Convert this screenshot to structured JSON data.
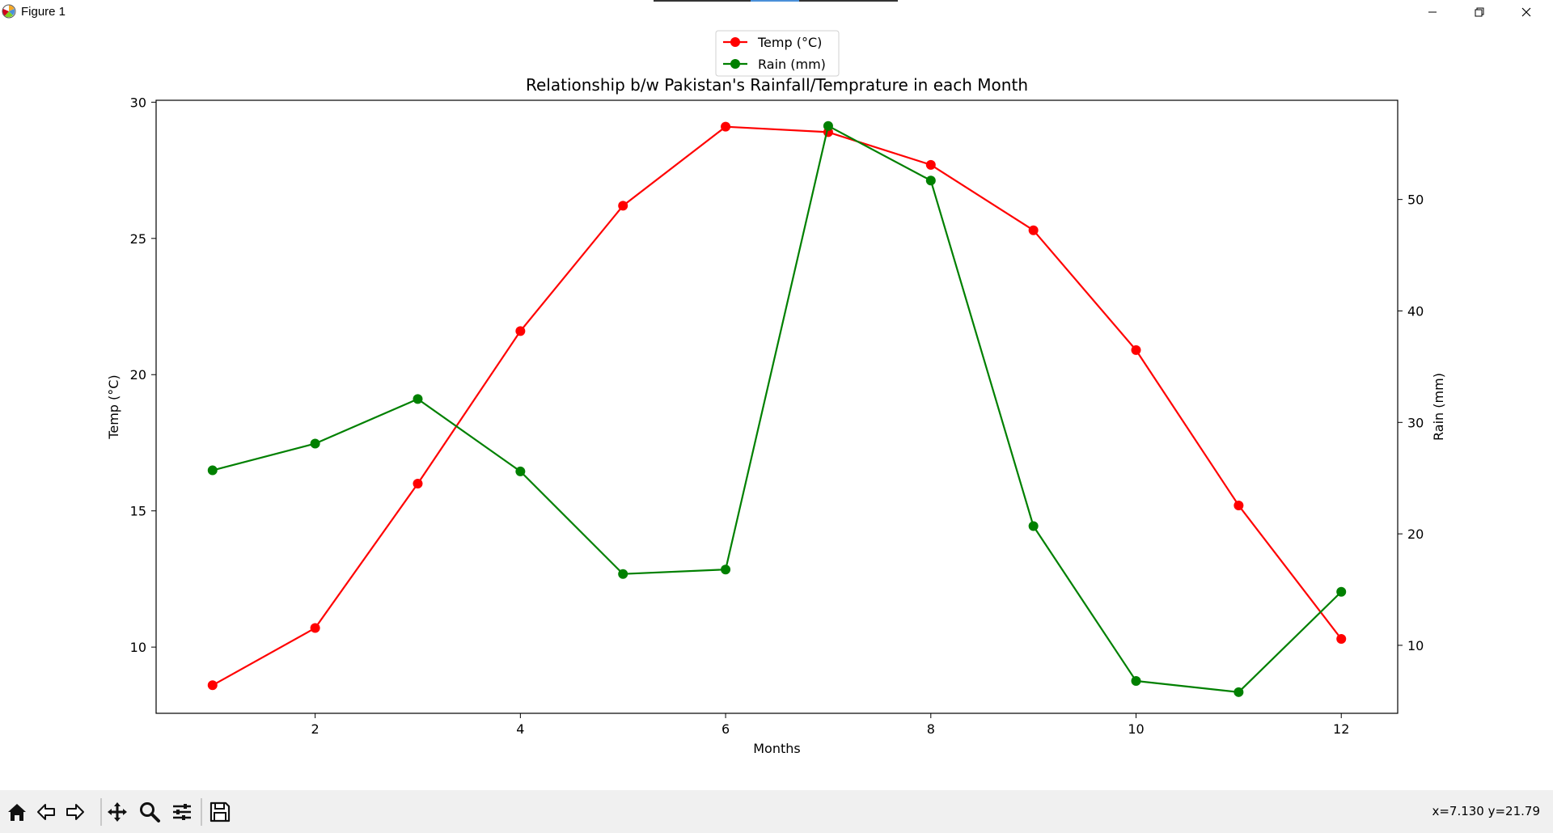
{
  "window": {
    "title": "Figure 1",
    "minimize_icon": "minimize-icon",
    "maximize_icon": "restore-icon",
    "close_icon": "close-icon"
  },
  "toolbar": {
    "buttons": [
      "home-icon",
      "back-arrow-icon",
      "forward-arrow-icon",
      "pan-icon",
      "zoom-icon",
      "configure-subplots-icon",
      "save-icon"
    ],
    "coords": "x=7.130 y=21.79"
  },
  "chart_data": {
    "type": "line",
    "title": "Relationship b/w Pakistan's Rainfall/Temprature in each Month",
    "xlabel": "Months",
    "ylabel_left": "Temp (°C)",
    "ylabel_right": "Rain (mm)",
    "x": [
      1,
      2,
      3,
      4,
      5,
      6,
      7,
      8,
      9,
      10,
      11,
      12
    ],
    "xlim": [
      0.45,
      12.55
    ],
    "x_ticks": [
      2,
      4,
      6,
      8,
      10,
      12
    ],
    "ylim_left": [
      7.57,
      30.07
    ],
    "y_ticks_left": [
      10,
      15,
      20,
      25,
      30
    ],
    "ylim_right": [
      3.9,
      58.9
    ],
    "y_ticks_right": [
      10,
      20,
      30,
      40,
      50
    ],
    "grid": false,
    "legend_position": "upper center, above axes",
    "series": [
      {
        "name": "Temp (°C)",
        "axis": "left",
        "color": "#ff0000",
        "marker": "circle",
        "values": [
          8.6,
          10.7,
          16.0,
          21.6,
          26.2,
          29.1,
          28.9,
          27.7,
          25.3,
          20.9,
          15.2,
          10.3
        ]
      },
      {
        "name": "Rain (mm)",
        "axis": "right",
        "color": "#008000",
        "marker": "circle",
        "values": [
          25.7,
          28.1,
          32.1,
          25.6,
          16.4,
          16.8,
          56.6,
          51.7,
          20.7,
          6.8,
          5.8,
          14.8
        ]
      }
    ]
  }
}
